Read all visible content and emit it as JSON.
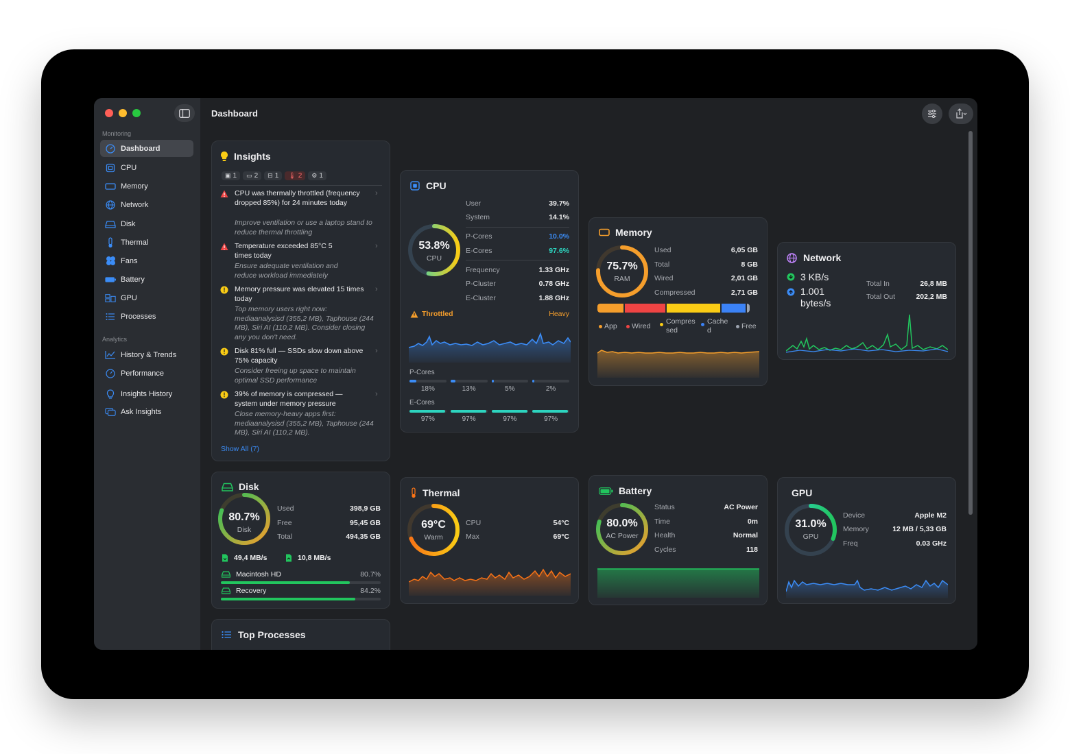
{
  "window": {
    "title": "Dashboard"
  },
  "sidebar": {
    "section_monitoring": "Monitoring",
    "section_analytics": "Analytics",
    "items": [
      {
        "label": "Dashboard",
        "icon": "gauge-icon"
      },
      {
        "label": "CPU",
        "icon": "cpu-icon"
      },
      {
        "label": "Memory",
        "icon": "memory-icon"
      },
      {
        "label": "Network",
        "icon": "network-icon"
      },
      {
        "label": "Disk",
        "icon": "disk-icon"
      },
      {
        "label": "Thermal",
        "icon": "thermometer-icon"
      },
      {
        "label": "Fans",
        "icon": "fan-icon"
      },
      {
        "label": "Battery",
        "icon": "battery-icon"
      },
      {
        "label": "GPU",
        "icon": "gpu-icon"
      },
      {
        "label": "Processes",
        "icon": "list-icon"
      }
    ],
    "analytics_items": [
      {
        "label": "History & Trends",
        "icon": "chart-line-icon"
      },
      {
        "label": "Performance",
        "icon": "speedometer-icon"
      },
      {
        "label": "Insights History",
        "icon": "lightbulb-icon"
      },
      {
        "label": "Ask Insights",
        "icon": "chat-icon"
      }
    ]
  },
  "insights": {
    "title": "Insights",
    "filters": [
      "1",
      "2",
      "1",
      "2",
      "1"
    ],
    "items": [
      {
        "title": "CPU was thermally throttled (frequency dropped 85%) for 24 minutes today",
        "sub": "Improve ventilation or use a laptop stand to reduce thermal throttling",
        "level": "critical"
      },
      {
        "title": "Temperature exceeded 85°C 5 times today",
        "sub": "Ensure adequate ventilation and reduce workload immediately",
        "level": "critical"
      },
      {
        "title": "Memory pressure was elevated 15 times today",
        "sub": "Top memory users right now: mediaanalysisd (355,2 MB), Taphouse (244 MB), Siri AI (110,2 MB). Consider closing any you don't need.",
        "level": "warning"
      },
      {
        "title": "Disk 81% full — SSDs slow down above 75% capacity",
        "sub": "Consider freeing up space to maintain optimal SSD performance",
        "level": "warning"
      },
      {
        "title": "39% of memory is compressed — system under memory pressure",
        "sub": "Close memory-heavy apps first: mediaanalysisd (355,2 MB), Taphouse (244 MB), Siri AI (110,2 MB).",
        "level": "warning"
      }
    ],
    "show_all": "Show All (7)"
  },
  "cpu": {
    "title": "CPU",
    "ring_value": "53.8%",
    "ring_label": "CPU",
    "ring_fraction": 0.538,
    "rows1": [
      {
        "label": "User",
        "value": "39.7%"
      },
      {
        "label": "System",
        "value": "14.1%"
      }
    ],
    "rows2": [
      {
        "label": "P-Cores",
        "value": "10.0%"
      },
      {
        "label": "E-Cores",
        "value": "97.6%"
      }
    ],
    "rows3": [
      {
        "label": "Frequency",
        "value": "1.33 GHz"
      },
      {
        "label": "P-Cluster",
        "value": "0.78 GHz"
      },
      {
        "label": "E-Cluster",
        "value": "1.88 GHz"
      }
    ],
    "throttled_label": "Throttled",
    "throttled_value": "Heavy",
    "pcores_label": "P-Cores",
    "pcores": [
      {
        "label": "18%",
        "fraction": 0.18
      },
      {
        "label": "13%",
        "fraction": 0.13
      },
      {
        "label": "5%",
        "fraction": 0.05
      },
      {
        "label": "2%",
        "fraction": 0.02
      }
    ],
    "ecores_label": "E-Cores",
    "ecores": [
      {
        "label": "97%",
        "fraction": 0.97
      },
      {
        "label": "97%",
        "fraction": 0.97
      },
      {
        "label": "97%",
        "fraction": 0.97
      },
      {
        "label": "97%",
        "fraction": 0.97
      }
    ]
  },
  "memory": {
    "title": "Memory",
    "ring_value": "75.7%",
    "ring_label": "RAM",
    "ring_fraction": 0.757,
    "rows": [
      {
        "label": "Used",
        "value": "6,05 GB"
      },
      {
        "label": "Total",
        "value": "8 GB"
      },
      {
        "label": "Wired",
        "value": "2,01 GB"
      },
      {
        "label": "Compressed",
        "value": "2,71 GB"
      }
    ],
    "legend": [
      "App",
      "Wired",
      "Compressed",
      "Cached",
      "Free"
    ],
    "colors": {
      "app": "#f59e2c",
      "wired": "#ef4444",
      "compressed": "#facc15",
      "cached": "#3b82f6",
      "free": "#9ca3af"
    }
  },
  "network": {
    "title": "Network",
    "in_rate": "3 KB/s",
    "out_rate": "1.001 bytes/s",
    "rows": [
      {
        "label": "Total In",
        "value": "26,8 MB"
      },
      {
        "label": "Total Out",
        "value": "202,2 MB"
      }
    ]
  },
  "disk": {
    "title": "Disk",
    "ring_value": "80.7%",
    "ring_label": "Disk",
    "ring_fraction": 0.807,
    "rows": [
      {
        "label": "Used",
        "value": "398,9 GB"
      },
      {
        "label": "Free",
        "value": "95,45 GB"
      },
      {
        "label": "Total",
        "value": "494,35 GB"
      }
    ],
    "read_rate": "49,4 MB/s",
    "write_rate": "10,8 MB/s",
    "volumes": [
      {
        "name": "Macintosh HD",
        "value": "80.7%",
        "fraction": 0.807
      },
      {
        "name": "Recovery",
        "value": "84.2%",
        "fraction": 0.842
      }
    ]
  },
  "thermal": {
    "title": "Thermal",
    "ring_value": "69°C",
    "ring_label": "Warm",
    "ring_fraction": 0.69,
    "rows": [
      {
        "label": "CPU",
        "value": "54°C"
      },
      {
        "label": "Max",
        "value": "69°C"
      }
    ]
  },
  "battery": {
    "title": "Battery",
    "ring_value": "80.0%",
    "ring_label": "AC Power",
    "ring_fraction": 0.8,
    "rows": [
      {
        "label": "Status",
        "value": "AC Power"
      },
      {
        "label": "Time",
        "value": "0m"
      },
      {
        "label": "Health",
        "value": "Normal"
      },
      {
        "label": "Cycles",
        "value": "118"
      }
    ]
  },
  "gpu": {
    "title": "GPU",
    "ring_value": "31.0%",
    "ring_label": "GPU",
    "ring_fraction": 0.31,
    "rows": [
      {
        "label": "Device",
        "value": "Apple M2"
      },
      {
        "label": "Memory",
        "value": "12 MB / 5,33 GB"
      },
      {
        "label": "Freq",
        "value": "0.03 GHz"
      }
    ]
  },
  "top_processes": {
    "title": "Top Processes"
  }
}
